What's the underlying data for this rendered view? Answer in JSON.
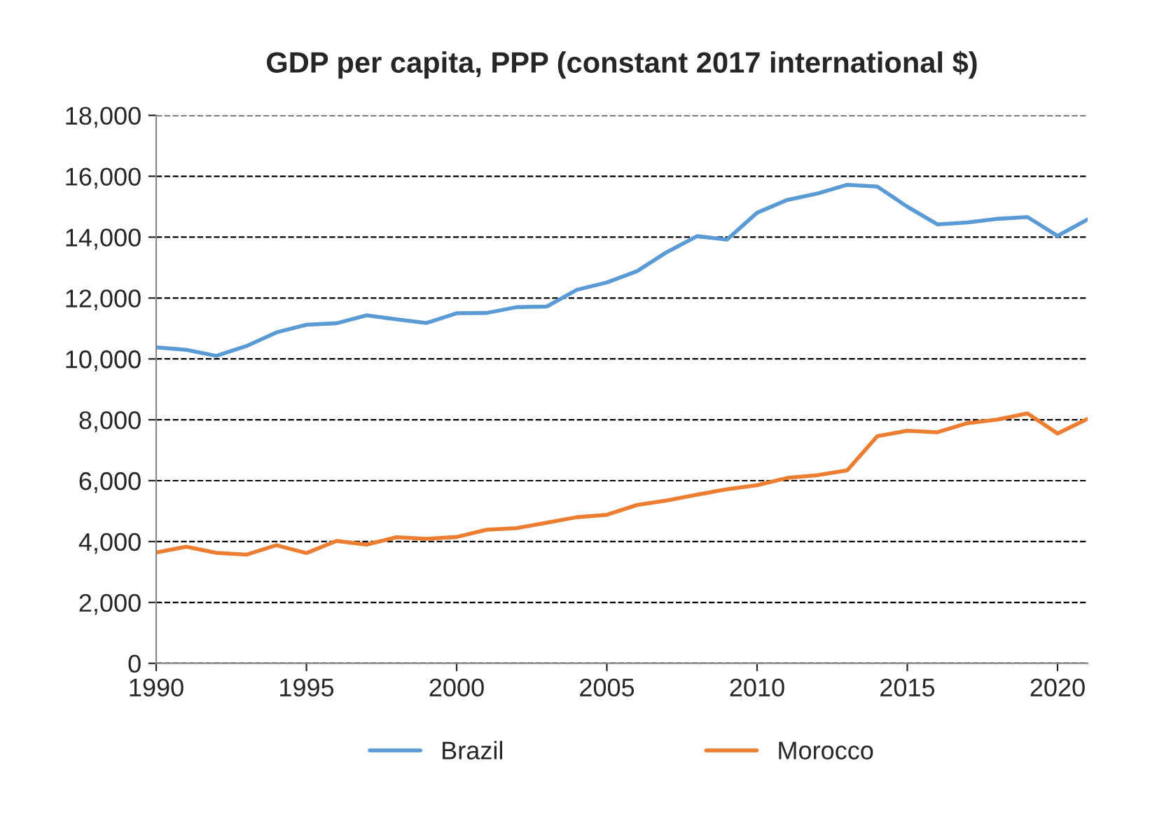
{
  "chart_data": {
    "type": "line",
    "title": "GDP per capita, PPP (constant 2017 international $)",
    "x": [
      1990,
      1991,
      1992,
      1993,
      1994,
      1995,
      1996,
      1997,
      1998,
      1999,
      2000,
      2001,
      2002,
      2003,
      2004,
      2005,
      2006,
      2007,
      2008,
      2009,
      2010,
      2011,
      2012,
      2013,
      2014,
      2015,
      2016,
      2017,
      2018,
      2019,
      2020,
      2021
    ],
    "series": [
      {
        "name": "Brazil",
        "color": "#5b9bd5",
        "values": [
          10380,
          10300,
          10100,
          10420,
          10870,
          11120,
          11170,
          11430,
          11300,
          11180,
          11500,
          11510,
          11700,
          11720,
          12270,
          12510,
          12880,
          13510,
          14030,
          13920,
          14800,
          15220,
          15430,
          15720,
          15660,
          15000,
          14420,
          14480,
          14600,
          14660,
          14040,
          14580
        ]
      },
      {
        "name": "Morocco",
        "color": "#ed7d31",
        "values": [
          3640,
          3830,
          3630,
          3570,
          3880,
          3620,
          4020,
          3900,
          4140,
          4090,
          4150,
          4390,
          4440,
          4620,
          4800,
          4880,
          5200,
          5350,
          5540,
          5720,
          5850,
          6090,
          6180,
          6340,
          7460,
          7640,
          7590,
          7890,
          8010,
          8210,
          7550,
          8030
        ]
      }
    ],
    "xlim": [
      1990,
      2021
    ],
    "xticks": [
      1990,
      1995,
      2000,
      2005,
      2010,
      2015,
      2020
    ],
    "ylim": [
      0,
      18000
    ],
    "yticks": [
      {
        "value": 0,
        "label": "0"
      },
      {
        "value": 2000,
        "label": "2,000"
      },
      {
        "value": 4000,
        "label": "4,000"
      },
      {
        "value": 6000,
        "label": "6,000"
      },
      {
        "value": 8000,
        "label": "8,000"
      },
      {
        "value": 10000,
        "label": "10,000"
      },
      {
        "value": 12000,
        "label": "12,000"
      },
      {
        "value": 14000,
        "label": "14,000"
      },
      {
        "value": 16000,
        "label": "16,000"
      },
      {
        "value": 18000,
        "label": "18,000"
      }
    ],
    "grid": "y",
    "legend": "bottom"
  }
}
